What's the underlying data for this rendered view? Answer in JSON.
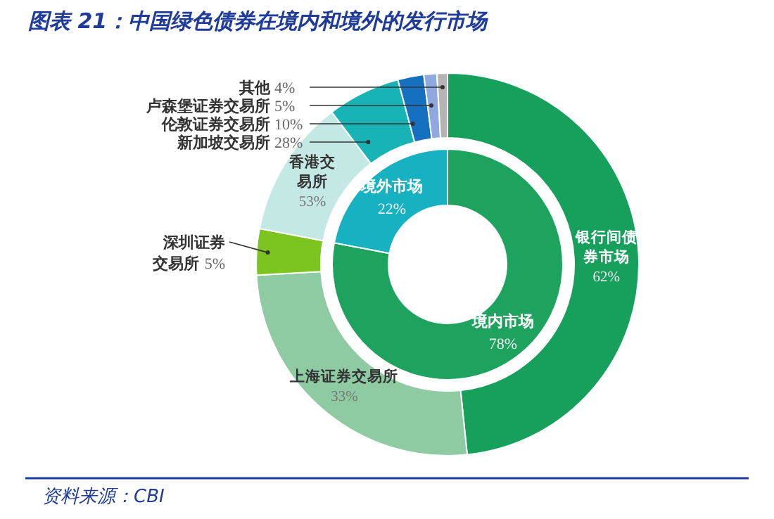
{
  "chart_data": [
    {
      "type": "donut",
      "title": "图表 21：中国绿色债券在境内和境外的发行市场",
      "annotations": [
        "资料来源：CBI"
      ],
      "categories": [
        "境内市场",
        "境外市场"
      ],
      "values": [
        78,
        22
      ],
      "colors": [
        "#1ea35e",
        "#17b2c2"
      ],
      "value_labels": [
        "78%",
        "22%"
      ]
    },
    {
      "type": "donut",
      "categories": [
        "银行间债券市场",
        "上海证券交易所",
        "深圳证券交易所"
      ],
      "values": [
        62,
        33,
        5
      ],
      "colors": [
        "#16a05c",
        "#8ecba2",
        "#7cc520"
      ],
      "value_labels": [
        "62%",
        "33%",
        "5%"
      ]
    },
    {
      "type": "donut",
      "categories": [
        "香港交易所",
        "新加坡交易所",
        "伦敦证券交易所",
        "卢森堡证券交易所",
        "其他"
      ],
      "values": [
        53,
        28,
        10,
        5,
        4
      ],
      "colors": [
        "#c4e8e4",
        "#17b3b5",
        "#1570c0",
        "#8fa8e0",
        "#b4b4b4"
      ],
      "value_labels": [
        "53%",
        "28%",
        "10%",
        "5%",
        "4%"
      ]
    }
  ]
}
